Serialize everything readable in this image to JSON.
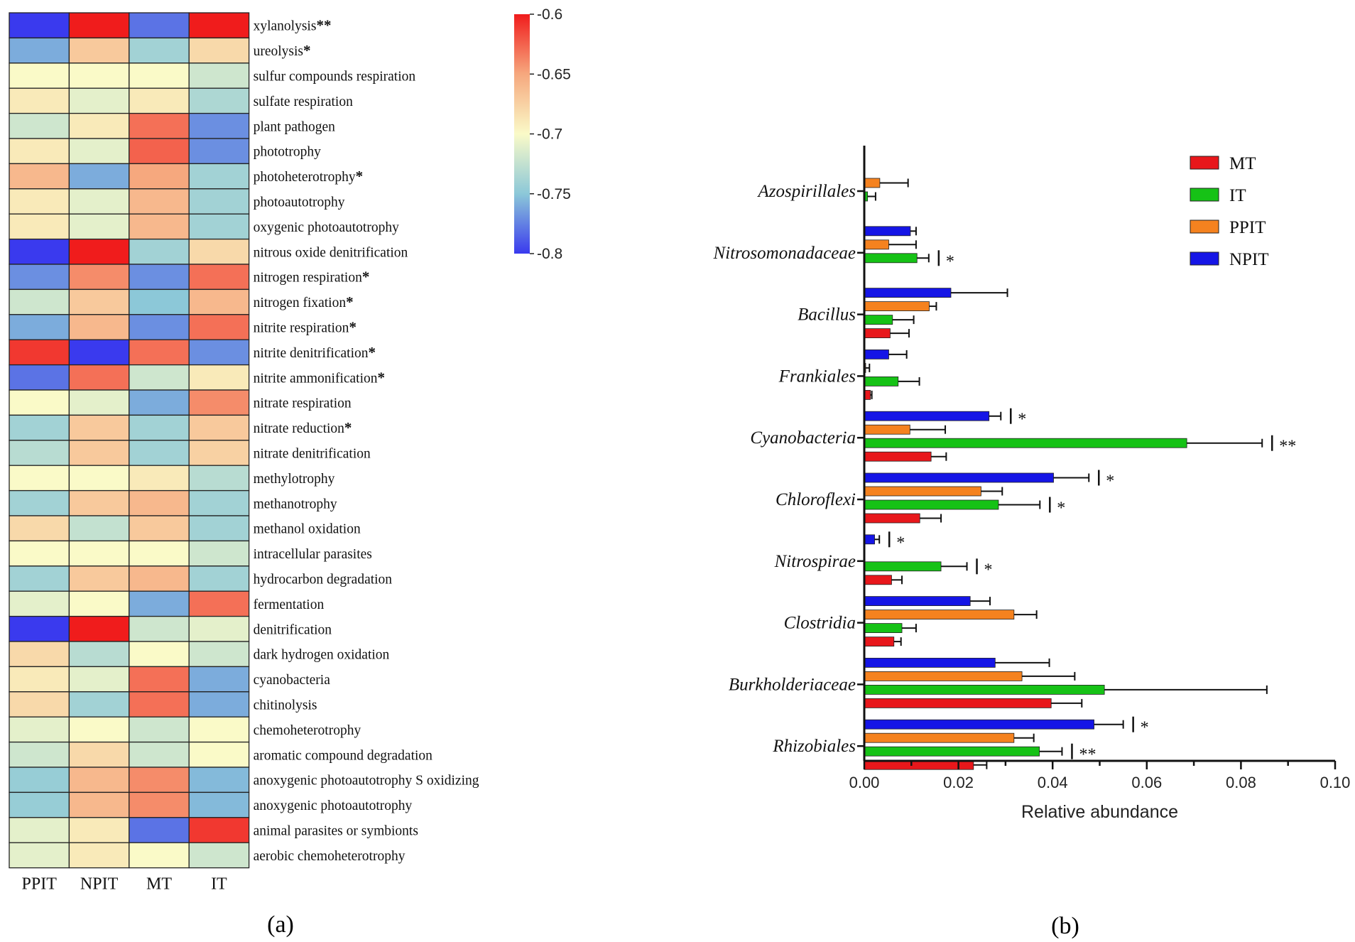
{
  "chart_data": [
    {
      "type": "heatmap",
      "panel_label": "(a)",
      "columns": [
        "PPIT",
        "NPIT",
        "MT",
        "IT"
      ],
      "rows": [
        {
          "label": "xylanolysis",
          "sig": "**",
          "values": [
            -0.8,
            -0.6,
            -0.78,
            -0.6
          ]
        },
        {
          "label": "ureolysis",
          "sig": "*",
          "values": [
            -0.76,
            -0.67,
            -0.74,
            -0.68
          ]
        },
        {
          "label": "sulfur compounds respiration",
          "sig": "",
          "values": [
            -0.7,
            -0.7,
            -0.7,
            -0.72
          ]
        },
        {
          "label": "sulfate respiration",
          "sig": "",
          "values": [
            -0.69,
            -0.71,
            -0.69,
            -0.735
          ]
        },
        {
          "label": "plant pathogen",
          "sig": "",
          "values": [
            -0.72,
            -0.69,
            -0.63,
            -0.77
          ]
        },
        {
          "label": "phototrophy",
          "sig": "",
          "values": [
            -0.69,
            -0.71,
            -0.625,
            -0.77
          ]
        },
        {
          "label": "photoheterotrophy",
          "sig": "*",
          "values": [
            -0.66,
            -0.76,
            -0.65,
            -0.74
          ]
        },
        {
          "label": "photoautotrophy",
          "sig": "",
          "values": [
            -0.69,
            -0.71,
            -0.66,
            -0.74
          ]
        },
        {
          "label": "oxygenic photoautotrophy",
          "sig": "",
          "values": [
            -0.69,
            -0.71,
            -0.66,
            -0.74
          ]
        },
        {
          "label": "nitrous oxide denitrification",
          "sig": "",
          "values": [
            -0.8,
            -0.6,
            -0.74,
            -0.68
          ]
        },
        {
          "label": "nitrogen respiration",
          "sig": "*",
          "values": [
            -0.77,
            -0.64,
            -0.77,
            -0.63
          ]
        },
        {
          "label": "nitrogen fixation",
          "sig": "*",
          "values": [
            -0.72,
            -0.67,
            -0.75,
            -0.66
          ]
        },
        {
          "label": "nitrite respiration",
          "sig": "*",
          "values": [
            -0.76,
            -0.66,
            -0.77,
            -0.63
          ]
        },
        {
          "label": "nitrite denitrification",
          "sig": "*",
          "values": [
            -0.61,
            -0.8,
            -0.63,
            -0.77
          ]
        },
        {
          "label": "nitrite ammonification",
          "sig": "*",
          "values": [
            -0.78,
            -0.63,
            -0.72,
            -0.69
          ]
        },
        {
          "label": "nitrate respiration",
          "sig": "",
          "values": [
            -0.7,
            -0.71,
            -0.76,
            -0.64
          ]
        },
        {
          "label": "nitrate reduction",
          "sig": "*",
          "values": [
            -0.74,
            -0.67,
            -0.74,
            -0.67
          ]
        },
        {
          "label": "nitrate denitrification",
          "sig": "",
          "values": [
            -0.73,
            -0.67,
            -0.74,
            -0.675
          ]
        },
        {
          "label": "methylotrophy",
          "sig": "",
          "values": [
            -0.7,
            -0.7,
            -0.69,
            -0.73
          ]
        },
        {
          "label": "methanotrophy",
          "sig": "",
          "values": [
            -0.74,
            -0.67,
            -0.66,
            -0.74
          ]
        },
        {
          "label": "methanol oxidation",
          "sig": "",
          "values": [
            -0.68,
            -0.725,
            -0.67,
            -0.74
          ]
        },
        {
          "label": "intracellular parasites",
          "sig": "",
          "values": [
            -0.7,
            -0.7,
            -0.7,
            -0.72
          ]
        },
        {
          "label": "hydrocarbon degradation",
          "sig": "",
          "values": [
            -0.74,
            -0.67,
            -0.66,
            -0.74
          ]
        },
        {
          "label": "fermentation",
          "sig": "",
          "values": [
            -0.71,
            -0.7,
            -0.76,
            -0.63
          ]
        },
        {
          "label": "denitrification",
          "sig": "",
          "values": [
            -0.8,
            -0.6,
            -0.72,
            -0.71
          ]
        },
        {
          "label": "dark hydrogen oxidation",
          "sig": "",
          "values": [
            -0.68,
            -0.73,
            -0.7,
            -0.72
          ]
        },
        {
          "label": "cyanobacteria",
          "sig": "",
          "values": [
            -0.69,
            -0.71,
            -0.63,
            -0.76
          ]
        },
        {
          "label": "chitinolysis",
          "sig": "",
          "values": [
            -0.68,
            -0.74,
            -0.63,
            -0.76
          ]
        },
        {
          "label": "chemoheterotrophy",
          "sig": "",
          "values": [
            -0.71,
            -0.7,
            -0.72,
            -0.7
          ]
        },
        {
          "label": "aromatic compound degradation",
          "sig": "",
          "values": [
            -0.72,
            -0.68,
            -0.72,
            -0.7
          ]
        },
        {
          "label": "anoxygenic photoautotrophy S oxidizing",
          "sig": "",
          "values": [
            -0.745,
            -0.66,
            -0.64,
            -0.755
          ]
        },
        {
          "label": "anoxygenic photoautotrophy",
          "sig": "",
          "values": [
            -0.745,
            -0.66,
            -0.64,
            -0.755
          ]
        },
        {
          "label": "animal parasites or symbionts",
          "sig": "",
          "values": [
            -0.71,
            -0.69,
            -0.78,
            -0.61
          ]
        },
        {
          "label": "aerobic chemoheterotrophy",
          "sig": "",
          "values": [
            -0.71,
            -0.69,
            -0.7,
            -0.72
          ]
        }
      ],
      "colorbar": {
        "min": -0.8,
        "max": -0.6,
        "ticks": [
          "-0.6",
          "-0.65",
          "-0.7",
          "-0.75",
          "-0.8"
        ]
      }
    },
    {
      "type": "bar",
      "orientation": "horizontal",
      "panel_label": "(b)",
      "xlabel": "Relative abundance",
      "xlim": [
        0,
        0.1
      ],
      "xticks": [
        "0.00",
        "0.02",
        "0.04",
        "0.06",
        "0.08",
        "0.10"
      ],
      "legend": [
        {
          "name": "MT",
          "color": "#e8171b"
        },
        {
          "name": "IT",
          "color": "#16c216"
        },
        {
          "name": "PPIT",
          "color": "#f5821f"
        },
        {
          "name": "NPIT",
          "color": "#1515e6"
        }
      ],
      "series_order_top_to_bottom": [
        "NPIT",
        "PPIT",
        "IT",
        "MT"
      ],
      "categories": [
        {
          "name": "Azospirillales",
          "bars": {
            "NPIT": null,
            "PPIT": 0.0033,
            "IT": 0.0007,
            "MT": null
          },
          "err": {
            "PPIT": 0.006,
            "IT": 0.0017
          },
          "sig": {}
        },
        {
          "name": "Nitrosomonadaceae",
          "bars": {
            "NPIT": 0.0098,
            "PPIT": 0.0052,
            "IT": 0.0112,
            "MT": 0.0001
          },
          "err": {
            "NPIT": 0.0012,
            "PPIT": 0.0058,
            "IT": 0.0025
          },
          "sig": {
            "IT": "*"
          }
        },
        {
          "name": "Bacillus",
          "bars": {
            "NPIT": 0.0184,
            "PPIT": 0.0138,
            "IT": 0.006,
            "MT": 0.0055
          },
          "err": {
            "NPIT": 0.012,
            "PPIT": 0.0015,
            "IT": 0.0045,
            "MT": 0.004
          },
          "sig": {}
        },
        {
          "name": "Frankiales",
          "bars": {
            "NPIT": 0.0052,
            "PPIT": 0.0003,
            "IT": 0.0072,
            "MT": 0.0013
          },
          "err": {
            "NPIT": 0.0038,
            "PPIT": 0.0008,
            "IT": 0.0045,
            "MT": 0.0003
          },
          "sig": {}
        },
        {
          "name": "Cyanobacteria",
          "bars": {
            "NPIT": 0.0265,
            "PPIT": 0.0097,
            "IT": 0.0685,
            "MT": 0.0142
          },
          "err": {
            "NPIT": 0.0025,
            "PPIT": 0.0075,
            "IT": 0.016,
            "MT": 0.0032
          },
          "sig": {
            "NPIT": "*",
            "IT": "**"
          }
        },
        {
          "name": "Chloroflexi",
          "bars": {
            "NPIT": 0.0402,
            "PPIT": 0.0248,
            "IT": 0.0285,
            "MT": 0.0118
          },
          "err": {
            "NPIT": 0.0075,
            "PPIT": 0.0045,
            "IT": 0.0088,
            "MT": 0.0045
          },
          "sig": {
            "NPIT": "*",
            "IT": "*"
          }
        },
        {
          "name": "Nitrospirae",
          "bars": {
            "NPIT": 0.0022,
            "PPIT": null,
            "IT": 0.0163,
            "MT": 0.0058
          },
          "err": {
            "NPIT": 0.001,
            "IT": 0.0055,
            "MT": 0.0022
          },
          "sig": {
            "NPIT": "*",
            "IT": "*"
          }
        },
        {
          "name": "Clostridia",
          "bars": {
            "NPIT": 0.0225,
            "PPIT": 0.0318,
            "IT": 0.008,
            "MT": 0.0063
          },
          "err": {
            "NPIT": 0.0042,
            "PPIT": 0.0048,
            "IT": 0.003,
            "MT": 0.0015
          },
          "sig": {}
        },
        {
          "name": "Burkholderiaceae",
          "bars": {
            "NPIT": 0.0278,
            "PPIT": 0.0335,
            "IT": 0.051,
            "MT": 0.0397
          },
          "err": {
            "NPIT": 0.0115,
            "PPIT": 0.0112,
            "IT": 0.0345,
            "MT": 0.0065
          },
          "sig": {}
        },
        {
          "name": "Rhizobiales",
          "bars": {
            "NPIT": 0.0488,
            "PPIT": 0.0318,
            "IT": 0.0372,
            "MT": 0.0232
          },
          "err": {
            "NPIT": 0.0062,
            "PPIT": 0.0042,
            "IT": 0.0048,
            "MT": 0.0028
          },
          "sig": {
            "NPIT": "*",
            "IT": "**"
          }
        }
      ]
    }
  ]
}
